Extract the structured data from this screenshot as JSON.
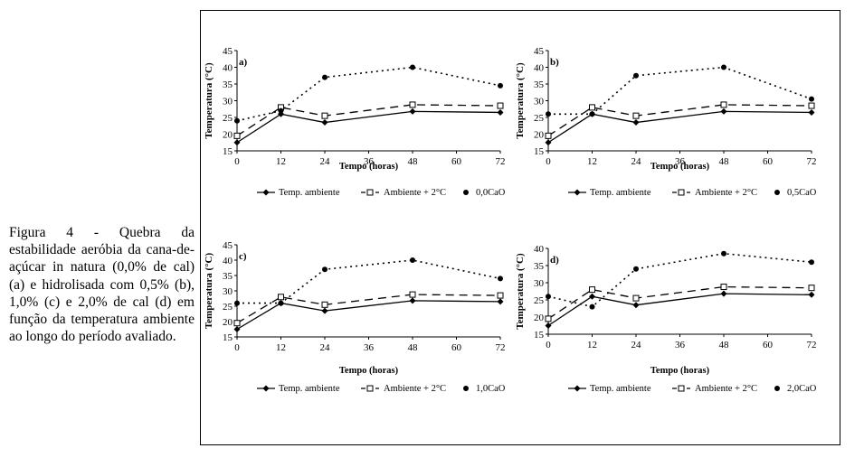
{
  "caption": "Figura 4 - Quebra da estabilidade aeróbia da cana-de-açúcar in natura (0,0% de cal) (a) e hidrolisada com 0,5% (b), 1,0% (c) e 2,0% de cal (d) em função da temperatura ambiente ao longo do período avaliado.",
  "chart_data": [
    {
      "type": "line",
      "panel_label": "a)",
      "ylabel": "Temperatura (°C)",
      "xlabel": "Tempo (horas)",
      "ylim": [
        15,
        45
      ],
      "yticks": [
        15,
        20,
        25,
        30,
        35,
        40,
        45
      ],
      "xticks": [
        0,
        12,
        24,
        36,
        48,
        60,
        72
      ],
      "x": [
        0,
        12,
        24,
        48,
        72
      ],
      "series": [
        {
          "name": "Temp. ambiente",
          "values": [
            17.5,
            26,
            23.5,
            26.8,
            26.5
          ]
        },
        {
          "name": "Ambiente + 2°C",
          "values": [
            19.5,
            28,
            25.5,
            28.8,
            28.5
          ]
        },
        {
          "name": "0,0CaO",
          "values": [
            24,
            27,
            37,
            40,
            34.5
          ]
        }
      ]
    },
    {
      "type": "line",
      "panel_label": "b)",
      "ylabel": "Temperatura (°C)",
      "xlabel": "Tempo (horas)",
      "ylim": [
        15,
        45
      ],
      "yticks": [
        15,
        20,
        25,
        30,
        35,
        40,
        45
      ],
      "xticks": [
        0,
        12,
        24,
        36,
        48,
        60,
        72
      ],
      "x": [
        0,
        12,
        24,
        48,
        72
      ],
      "series": [
        {
          "name": "Temp. ambiente",
          "values": [
            17.5,
            26,
            23.5,
            26.8,
            26.5
          ]
        },
        {
          "name": "Ambiente + 2°C",
          "values": [
            19.5,
            28,
            25.5,
            28.8,
            28.5
          ]
        },
        {
          "name": "0,5CaO",
          "values": [
            26,
            26,
            37.5,
            40,
            30.5
          ]
        }
      ]
    },
    {
      "type": "line",
      "panel_label": "c)",
      "ylabel": "Temperatura (°C)",
      "xlabel": "Tempo (horas)",
      "ylim": [
        15,
        45
      ],
      "yticks": [
        15,
        20,
        25,
        30,
        35,
        40,
        45
      ],
      "xticks": [
        0,
        12,
        24,
        36,
        48,
        60,
        72
      ],
      "x": [
        0,
        12,
        24,
        48,
        72
      ],
      "series": [
        {
          "name": "Temp. ambiente",
          "values": [
            17.5,
            26,
            23.5,
            26.8,
            26.5
          ]
        },
        {
          "name": "Ambiente + 2°C",
          "values": [
            19.5,
            28,
            25.5,
            28.8,
            28.5
          ]
        },
        {
          "name": "1,0CaO",
          "values": [
            26,
            26,
            37,
            40,
            34
          ]
        }
      ]
    },
    {
      "type": "line",
      "panel_label": "d)",
      "ylabel": "Temperatura (°C)",
      "xlabel": "Tempo (horas)",
      "ylim": [
        15,
        40
      ],
      "yticks": [
        15,
        20,
        25,
        30,
        35,
        40
      ],
      "xticks": [
        0,
        12,
        24,
        36,
        48,
        60,
        72
      ],
      "x": [
        0,
        12,
        24,
        48,
        72
      ],
      "series": [
        {
          "name": "Temp. ambiente",
          "values": [
            17.5,
            26,
            23.5,
            26.8,
            26.5
          ]
        },
        {
          "name": "Ambiente + 2°C",
          "values": [
            19.5,
            28,
            25.5,
            28.8,
            28.5
          ]
        },
        {
          "name": "2,0CaO",
          "values": [
            26,
            23,
            34,
            38.5,
            36
          ]
        }
      ]
    }
  ]
}
